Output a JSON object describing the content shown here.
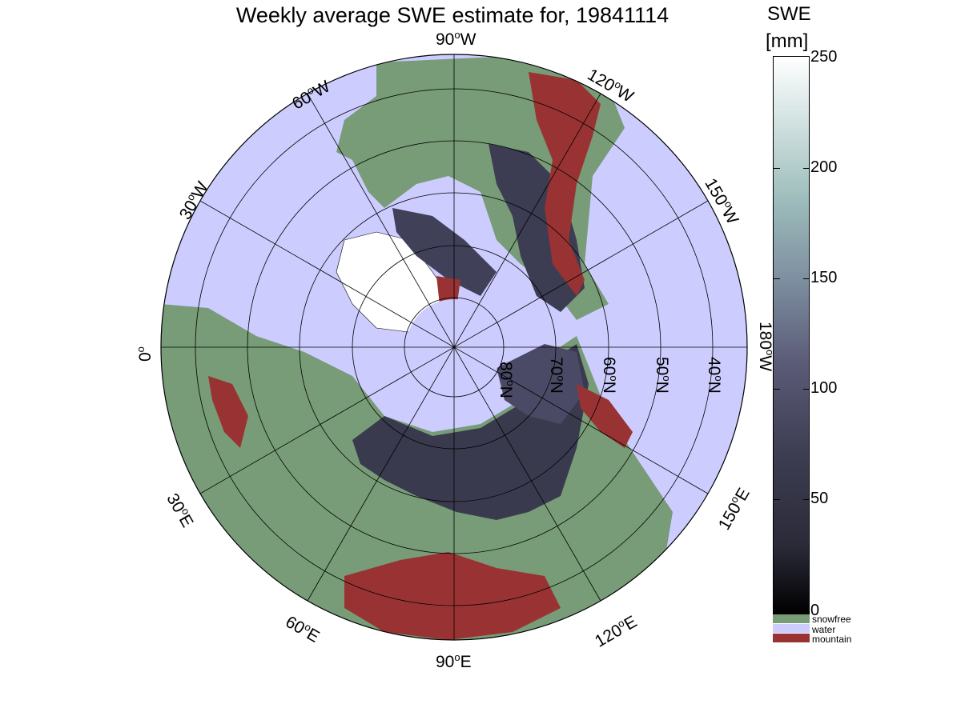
{
  "title": "Weekly average SWE estimate for, 19841114",
  "map": {
    "longitude_labels": [
      {
        "base": "90",
        "deg": "o",
        "dir": "W"
      },
      {
        "base": "120",
        "deg": "o",
        "dir": "W"
      },
      {
        "base": "150",
        "deg": "o",
        "dir": "W"
      },
      {
        "base": "180",
        "deg": "o",
        "dir": "W"
      },
      {
        "base": "150",
        "deg": "o",
        "dir": "E"
      },
      {
        "base": "120",
        "deg": "o",
        "dir": "E"
      },
      {
        "base": "90",
        "deg": "o",
        "dir": "E"
      },
      {
        "base": "60",
        "deg": "o",
        "dir": "E"
      },
      {
        "base": "30",
        "deg": "o",
        "dir": "E"
      },
      {
        "base": "0",
        "deg": "o",
        "dir": ""
      },
      {
        "base": "30",
        "deg": "o",
        "dir": "W"
      },
      {
        "base": "60",
        "deg": "o",
        "dir": "W"
      }
    ],
    "latitude_labels": [
      {
        "base": "80",
        "deg": "o",
        "dir": "N"
      },
      {
        "base": "70",
        "deg": "o",
        "dir": "N"
      },
      {
        "base": "60",
        "deg": "o",
        "dir": "N"
      },
      {
        "base": "50",
        "deg": "o",
        "dir": "N"
      },
      {
        "base": "40",
        "deg": "o",
        "dir": "N"
      }
    ],
    "colors": {
      "water": "#ccccff",
      "snowfree": "#779c77",
      "mountain": "#993333",
      "snow_low": "#2a2a3a",
      "snow_mid": "#4a4a66"
    }
  },
  "colorbar": {
    "title": "SWE",
    "unit": "[mm]",
    "ticks": [
      "0",
      "50",
      "100",
      "150",
      "200",
      "250"
    ],
    "min": 0,
    "max": 250
  },
  "legend": [
    {
      "label": "snowfree",
      "color": "#779c77"
    },
    {
      "label": "water",
      "color": "#ccccff"
    },
    {
      "label": "mountain",
      "color": "#993333"
    }
  ]
}
